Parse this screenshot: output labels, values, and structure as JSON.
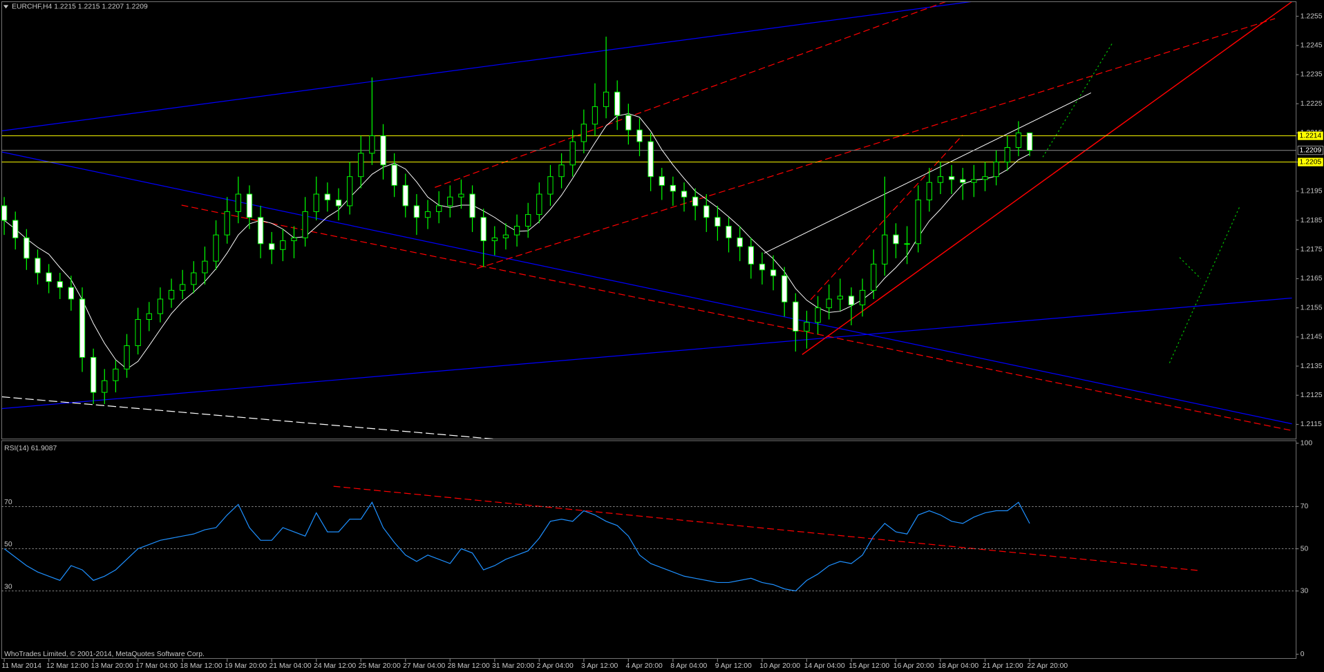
{
  "chart_data": {
    "type": "candlestick",
    "title": "EURCHF,H4  1.2215 1.2215 1.2207 1.2209",
    "footer": "WhoTrades Limited, © 2001-2014, MetaQuotes Software Corp.",
    "categories": [
      "11 Mar 2014",
      null,
      null,
      null,
      "12 Mar 12:00",
      null,
      null,
      null,
      "13 Mar 20:00",
      null,
      null,
      null,
      "17 Mar 04:00",
      null,
      null,
      null,
      "18 Mar 12:00",
      null,
      null,
      null,
      "19 Mar 20:00",
      null,
      null,
      null,
      "21 Mar 04:00",
      null,
      null,
      null,
      "24 Mar 12:00",
      null,
      null,
      null,
      "25 Mar 20:00",
      null,
      null,
      null,
      "27 Mar 04:00",
      null,
      null,
      null,
      "28 Mar 12:00",
      null,
      null,
      null,
      "31 Mar 20:00",
      null,
      null,
      null,
      "2 Apr 04:00",
      null,
      null,
      null,
      "3 Apr 12:00",
      null,
      null,
      null,
      "4 Apr 20:00",
      null,
      null,
      null,
      "8 Apr 04:00",
      null,
      null,
      null,
      "9 Apr 12:00",
      null,
      null,
      null,
      "10 Apr 20:00",
      null,
      null,
      null,
      "14 Apr 04:00",
      null,
      null,
      null,
      "15 Apr 12:00",
      null,
      null,
      null,
      "16 Apr 20:00",
      null,
      null,
      null,
      "18 Apr 04:00",
      null,
      null,
      null,
      "21 Apr 12:00",
      null,
      null,
      null,
      "22 Apr 20:00"
    ],
    "candles": [
      [
        1.219,
        1.2193,
        1.218,
        1.2185
      ],
      [
        1.2185,
        1.2188,
        1.2175,
        1.2179
      ],
      [
        1.2179,
        1.2182,
        1.2168,
        1.2172
      ],
      [
        1.2172,
        1.2175,
        1.2163,
        1.2167
      ],
      [
        1.2167,
        1.217,
        1.216,
        1.2164
      ],
      [
        1.2164,
        1.2167,
        1.2158,
        1.2162
      ],
      [
        1.2162,
        1.2166,
        1.2154,
        1.2158
      ],
      [
        1.2158,
        1.2162,
        1.2133,
        1.2138
      ],
      [
        1.2138,
        1.2141,
        1.2122,
        1.2126
      ],
      [
        1.2126,
        1.2134,
        1.2122,
        1.213
      ],
      [
        1.213,
        1.2137,
        1.2126,
        1.2134
      ],
      [
        1.2134,
        1.2146,
        1.2131,
        1.2142
      ],
      [
        1.2142,
        1.2155,
        1.2139,
        1.2151
      ],
      [
        1.2151,
        1.2157,
        1.2147,
        1.2153
      ],
      [
        1.2153,
        1.2162,
        1.215,
        1.2158
      ],
      [
        1.2158,
        1.2165,
        1.2155,
        1.2161
      ],
      [
        1.2161,
        1.2168,
        1.2158,
        1.2163
      ],
      [
        1.2163,
        1.2171,
        1.216,
        1.2167
      ],
      [
        1.2167,
        1.2176,
        1.2163,
        1.2171
      ],
      [
        1.2171,
        1.2185,
        1.2168,
        1.218
      ],
      [
        1.218,
        1.2193,
        1.2177,
        1.2188
      ],
      [
        1.2188,
        1.22,
        1.2184,
        1.2194
      ],
      [
        1.2194,
        1.2197,
        1.2182,
        1.2186
      ],
      [
        1.2186,
        1.219,
        1.2172,
        1.2177
      ],
      [
        1.2177,
        1.2181,
        1.217,
        1.2175
      ],
      [
        1.2175,
        1.2182,
        1.2171,
        1.2178
      ],
      [
        1.2178,
        1.2183,
        1.2172,
        1.2179
      ],
      [
        1.2179,
        1.2193,
        1.2176,
        1.2188
      ],
      [
        1.2188,
        1.22,
        1.2185,
        1.2194
      ],
      [
        1.2194,
        1.2198,
        1.2188,
        1.2192
      ],
      [
        1.2192,
        1.2196,
        1.2185,
        1.219
      ],
      [
        1.219,
        1.2205,
        1.2187,
        1.22
      ],
      [
        1.22,
        1.2214,
        1.2196,
        1.2208
      ],
      [
        1.2208,
        1.2234,
        1.2204,
        1.2214
      ],
      [
        1.2214,
        1.2218,
        1.2199,
        1.2204
      ],
      [
        1.2204,
        1.2208,
        1.2193,
        1.2197
      ],
      [
        1.2197,
        1.2201,
        1.2186,
        1.219
      ],
      [
        1.219,
        1.2194,
        1.218,
        1.2186
      ],
      [
        1.2186,
        1.2192,
        1.2182,
        1.2188
      ],
      [
        1.2188,
        1.2195,
        1.2184,
        1.219
      ],
      [
        1.219,
        1.2197,
        1.2186,
        1.2193
      ],
      [
        1.2193,
        1.2199,
        1.2189,
        1.2194
      ],
      [
        1.2194,
        1.2197,
        1.2181,
        1.2186
      ],
      [
        1.2186,
        1.2189,
        1.2169,
        1.2178
      ],
      [
        1.2178,
        1.2183,
        1.2173,
        1.2179
      ],
      [
        1.2179,
        1.2184,
        1.2175,
        1.218
      ],
      [
        1.218,
        1.2187,
        1.2176,
        1.2183
      ],
      [
        1.2183,
        1.2191,
        1.2179,
        1.2187
      ],
      [
        1.2187,
        1.2198,
        1.2184,
        1.2194
      ],
      [
        1.2194,
        1.2204,
        1.219,
        1.22
      ],
      [
        1.22,
        1.2208,
        1.2196,
        1.2204
      ],
      [
        1.2204,
        1.2216,
        1.22,
        1.2212
      ],
      [
        1.2212,
        1.2223,
        1.2208,
        1.2218
      ],
      [
        1.2218,
        1.2232,
        1.2214,
        1.2224
      ],
      [
        1.2224,
        1.2248,
        1.222,
        1.2229
      ],
      [
        1.2229,
        1.2233,
        1.2216,
        1.2221
      ],
      [
        1.2221,
        1.2225,
        1.2211,
        1.2216
      ],
      [
        1.2216,
        1.222,
        1.2207,
        1.2212
      ],
      [
        1.2212,
        1.2215,
        1.2195,
        1.22
      ],
      [
        1.22,
        1.2203,
        1.2192,
        1.2197
      ],
      [
        1.2197,
        1.22,
        1.219,
        1.2195
      ],
      [
        1.2195,
        1.2198,
        1.2188,
        1.2193
      ],
      [
        1.2193,
        1.2196,
        1.2185,
        1.219
      ],
      [
        1.219,
        1.2194,
        1.2181,
        1.2186
      ],
      [
        1.2186,
        1.219,
        1.2178,
        1.2183
      ],
      [
        1.2183,
        1.2186,
        1.2174,
        1.2179
      ],
      [
        1.2179,
        1.2183,
        1.2171,
        1.2176
      ],
      [
        1.2176,
        1.2179,
        1.2165,
        1.217
      ],
      [
        1.217,
        1.2174,
        1.2163,
        1.2168
      ],
      [
        1.2168,
        1.2173,
        1.2161,
        1.2166
      ],
      [
        1.2166,
        1.2169,
        1.2152,
        1.2157
      ],
      [
        1.2157,
        1.216,
        1.214,
        1.2147
      ],
      [
        1.2147,
        1.2154,
        1.2141,
        1.215
      ],
      [
        1.215,
        1.2159,
        1.2146,
        1.2155
      ],
      [
        1.2155,
        1.2163,
        1.2151,
        1.2158
      ],
      [
        1.2158,
        1.2165,
        1.2154,
        1.2159
      ],
      [
        1.2159,
        1.2162,
        1.2149,
        1.2156
      ],
      [
        1.2156,
        1.2165,
        1.2152,
        1.2161
      ],
      [
        1.2161,
        1.2175,
        1.2158,
        1.217
      ],
      [
        1.217,
        1.22,
        1.2166,
        1.218
      ],
      [
        1.218,
        1.2184,
        1.2172,
        1.2177
      ],
      [
        1.2177,
        1.2183,
        1.217,
        1.2177
      ],
      [
        1.2177,
        1.2197,
        1.2174,
        1.2192
      ],
      [
        1.2192,
        1.2203,
        1.2188,
        1.2198
      ],
      [
        1.2198,
        1.2205,
        1.2194,
        1.22
      ],
      [
        1.22,
        1.2204,
        1.2194,
        1.2199
      ],
      [
        1.2199,
        1.2203,
        1.2192,
        1.2198
      ],
      [
        1.2198,
        1.2204,
        1.2193,
        1.2199
      ],
      [
        1.2199,
        1.2205,
        1.2195,
        1.22
      ],
      [
        1.22,
        1.2209,
        1.2197,
        1.2205
      ],
      [
        1.2205,
        1.2214,
        1.2202,
        1.221
      ],
      [
        1.221,
        1.2219,
        1.2207,
        1.2215
      ],
      [
        1.2215,
        1.2215,
        1.2207,
        1.2209
      ]
    ],
    "bull_color": "#000000",
    "bear_color": "#ffffff",
    "wick_color": "#00ff00",
    "ylim": [
      1.211,
      1.226
    ],
    "yticks": [
      1.2255,
      1.2245,
      1.2235,
      1.2225,
      1.2215,
      1.2205,
      1.2195,
      1.2185,
      1.2175,
      1.2165,
      1.2155,
      1.2145,
      1.2135,
      1.2125,
      1.2115
    ],
    "hlines": [
      {
        "value": 1.2214,
        "color": "#ffff00"
      },
      {
        "value": 1.2209,
        "color": "#8c8c8c"
      },
      {
        "value": 1.2205,
        "color": "#ffff00"
      }
    ],
    "rsi": {
      "title": "RSI(14) 61.9087",
      "color": "#1e90ff",
      "values": [
        50,
        46,
        42,
        39,
        37,
        35,
        42,
        40,
        35,
        37,
        40,
        45,
        50,
        52,
        54,
        55,
        56,
        57,
        59,
        60,
        66,
        71,
        60,
        54,
        54,
        60,
        58,
        56,
        67,
        58,
        58,
        64,
        64,
        72,
        60,
        53,
        47,
        44,
        47,
        45,
        43,
        50,
        48,
        40,
        42,
        45,
        47,
        49,
        55,
        63,
        64,
        63,
        68,
        66,
        63,
        61,
        56,
        47,
        43,
        41,
        39,
        37,
        36,
        35,
        34,
        34,
        35,
        36,
        34,
        33,
        31,
        30,
        35,
        38,
        42,
        44,
        43,
        47,
        56,
        62,
        58,
        57,
        66,
        68,
        66,
        63,
        62,
        65,
        67,
        68,
        68,
        72,
        62
      ],
      "ylim": [
        0,
        100
      ],
      "yticks": [
        100,
        70,
        50,
        30,
        0
      ],
      "levels": [
        70,
        50,
        30
      ]
    }
  }
}
